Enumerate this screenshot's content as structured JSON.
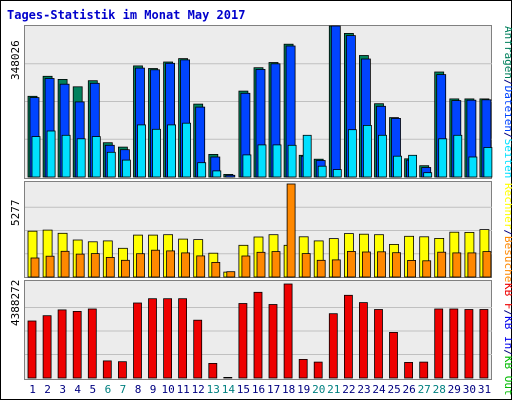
{
  "chart_data": {
    "title": "Tages-Statistik im Monat May 2017",
    "type": "bar",
    "days": [
      "1",
      "2",
      "3",
      "4",
      "5",
      "6",
      "7",
      "8",
      "9",
      "10",
      "11",
      "12",
      "13",
      "14",
      "15",
      "16",
      "17",
      "18",
      "19",
      "20",
      "21",
      "22",
      "23",
      "24",
      "25",
      "26",
      "27",
      "28",
      "29",
      "30",
      "31"
    ],
    "weekend_days": [
      "6",
      "7",
      "13",
      "14",
      "20",
      "21",
      "27",
      "28"
    ],
    "colors": {
      "title": "#0000cc",
      "weekday": "#000080",
      "weekend": "#008080",
      "grid": "#c0c0c0",
      "panel_bg": "#ececec",
      "anfragen": "#00805c",
      "dateien": "#0044ff",
      "seiten": "#00e0ff",
      "rechner": "#ffff00",
      "besuche": "#ff8800",
      "kb_in": "#0000ee",
      "kb_out": "#00bb00",
      "kb_f": "#ee0000"
    },
    "panels": [
      {
        "id": "hits",
        "max_label": "348026",
        "max": 348026,
        "legend": [
          {
            "text": "Anfragen",
            "color": "#00805c"
          },
          {
            "text": "/",
            "color": "#000080"
          },
          {
            "text": "Dateien",
            "color": "#0044ff"
          },
          {
            "text": "/",
            "color": "#000080"
          },
          {
            "text": "Seiten",
            "color": "#00e0ff"
          }
        ],
        "series": [
          {
            "name": "Anfragen",
            "values": [
              186000,
              232000,
              225000,
              208000,
              222000,
              79000,
              69000,
              256000,
              250000,
              265000,
              273000,
              168000,
              52000,
              6000,
              198000,
              252000,
              264000,
              306000,
              50000,
              41000,
              348026,
              331000,
              280000,
              169000,
              137000,
              42000,
              26000,
              242000,
              180000,
              180000,
              180000
            ]
          },
          {
            "name": "Dateien",
            "values": [
              183000,
              227000,
              214000,
              173000,
              216000,
              73000,
              63000,
              251000,
              247000,
              262000,
              270000,
              161000,
              46000,
              4000,
              193000,
              248000,
              261000,
              302000,
              48000,
              38000,
              348026,
              326000,
              272000,
              163000,
              135000,
              39000,
              22000,
              236000,
              176000,
              177000,
              178000
            ]
          },
          {
            "name": "Seiten",
            "values": [
              93000,
              106000,
              96000,
              88000,
              93000,
              57000,
              39000,
              120000,
              110000,
              120000,
              124000,
              33000,
              14000,
              0,
              51000,
              74000,
              74000,
              73000,
              96000,
              25000,
              17000,
              109000,
              119000,
              96000,
              48000,
              50000,
              10000,
              88000,
              96000,
              46000,
              68000
            ]
          }
        ]
      },
      {
        "id": "visits",
        "max_label": "5277",
        "max": 5277,
        "legend": [
          {
            "text": "Rechner",
            "color": "#ffff00"
          },
          {
            "text": "/",
            "color": "#000080"
          },
          {
            "text": "Besuche",
            "color": "#ff8800"
          }
        ],
        "series": [
          {
            "name": "Rechner",
            "values": [
              2600,
              2660,
              2480,
              2100,
              2000,
              2050,
              1630,
              2380,
              2380,
              2400,
              2150,
              2120,
              1350,
              280,
              1800,
              2270,
              2400,
              1800,
              2280,
              2050,
              2180,
              2460,
              2430,
              2400,
              1850,
              2310,
              2280,
              2190,
              2540,
              2530,
              2690
            ]
          },
          {
            "name": "Besuche",
            "values": [
              1080,
              1180,
              1460,
              1300,
              1330,
              1110,
              950,
              1320,
              1520,
              1480,
              1370,
              1200,
              830,
              300,
              1190,
              1400,
              1440,
              5277,
              1330,
              950,
              970,
              1450,
              1420,
              1430,
              1380,
              940,
              920,
              1410,
              1370,
              1370,
              1440
            ]
          }
        ]
      },
      {
        "id": "kbytes",
        "max_label": "4388272",
        "max": 4388272,
        "legend": [
          {
            "text": "KB F",
            "color": "#ee0000"
          },
          {
            "text": "/",
            "color": "#000080"
          },
          {
            "text": "KB In",
            "color": "#0000ee"
          },
          {
            "text": "/",
            "color": "#000080"
          },
          {
            "text": "KB Out",
            "color": "#00bb00"
          }
        ],
        "series": [
          {
            "name": "KB F",
            "values": [
              2660000,
              2910000,
              3180000,
              3110000,
              3220000,
              800000,
              760000,
              3500000,
              3700000,
              3700000,
              3700000,
              2700000,
              680000,
              30000,
              3480000,
              4000000,
              3430000,
              4388272,
              870000,
              740000,
              3000000,
              3860000,
              3520000,
              3200000,
              2130000,
              730000,
              740000,
              3220000,
              3220000,
              3200000,
              3200000
            ]
          }
        ]
      }
    ]
  }
}
